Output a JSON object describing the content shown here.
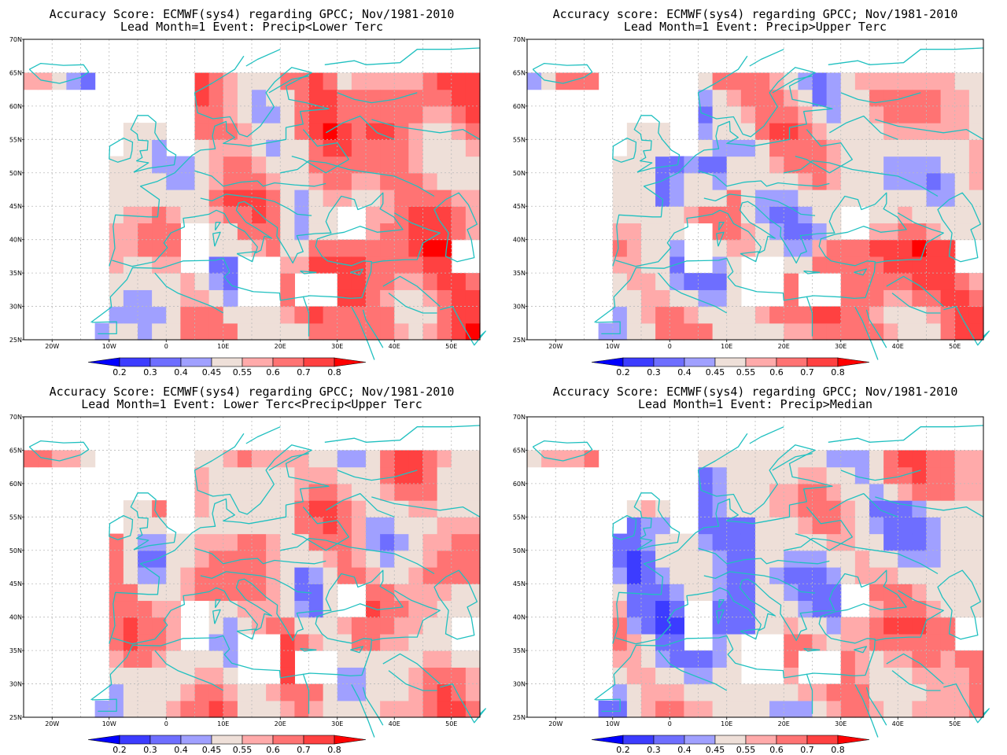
{
  "panels": [
    {
      "id": "p1",
      "line1": "Accuracy Score: ECMWF(sys4) regarding GPCC; Nov/1981-2010",
      "line2": "Lead Month=1 Event: Precip<Lower Terc",
      "pattern": "lower"
    },
    {
      "id": "p2",
      "line1": "Accuracy score: ECMWF(sys4) regarding GPCC; Nov/1981-2010",
      "line2": "Lead Month=1 Event: Precip>Upper Terc",
      "pattern": "upper"
    },
    {
      "id": "p3",
      "line1": "Accuracy Score: ECMWF(sys4) regarding GPCC; Nov/1981-2010",
      "line2": "Lead Month=1 Event: Lower Terc<Precip<Upper Terc",
      "pattern": "middle"
    },
    {
      "id": "p4",
      "line1": "Accuracy Score: ECMWF(sys4) regarding GPCC; Nov/1981-2010",
      "line2": "Lead Month=1 Event: Precip>Median",
      "pattern": "median"
    }
  ],
  "axes": {
    "lat_labels": [
      "70N",
      "65N",
      "60N",
      "55N",
      "50N",
      "45N",
      "40N",
      "35N",
      "30N",
      "25N"
    ],
    "lon_labels": [
      "20W",
      "10W",
      "0",
      "10E",
      "20E",
      "30E",
      "40E",
      "50E"
    ],
    "lon_range": [
      -25,
      55
    ],
    "lat_range": [
      25,
      70
    ],
    "grid": true
  },
  "colorbar": {
    "labels": [
      "0.2",
      "0.3",
      "0.4",
      "0.45",
      "0.55",
      "0.6",
      "0.7",
      "0.8"
    ],
    "colors": [
      "#0000ff",
      "#3c3cff",
      "#6e6eff",
      "#a0a0ff",
      "#eedfd8",
      "#ffaaaa",
      "#ff7373",
      "#ff4141",
      "#ff0000"
    ]
  },
  "colors": {
    "coastline": "#20c0c0",
    "grid": "#bbbbbb",
    "missing": "#ffffff"
  }
}
